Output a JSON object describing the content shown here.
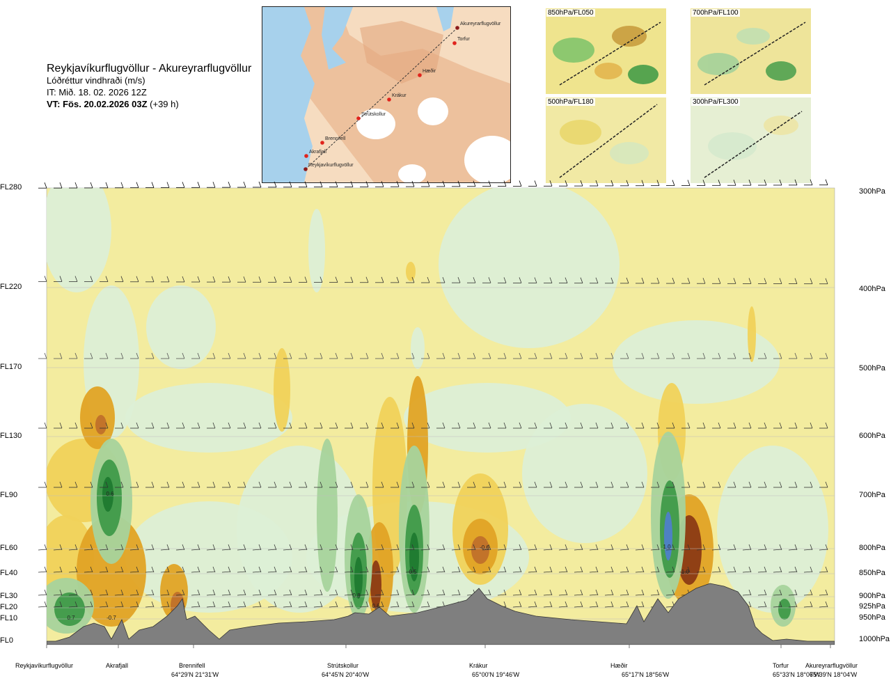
{
  "header": {
    "route": "Reykjavíkurflugvöllur - Akureyrarflugvöllur",
    "variable": "Lóðréttur vindhraði (m/s)",
    "issue_time": "IT: Mið. 18. 02. 2026 12Z",
    "valid_prefix": "VT: Fös. 20.02.2026 03Z",
    "valid_suffix": "(+39 h)"
  },
  "map": {
    "waypoints": [
      "Akureyrarflugvöllur",
      "Torfur",
      "Hæðir",
      "Krákur",
      "Strútskollur",
      "Brennifell",
      "Akrafjall",
      "Reykjavíkurflugvöllur"
    ]
  },
  "mini_maps": [
    {
      "label": "850hPa/FL050"
    },
    {
      "label": "700hPa/FL100"
    },
    {
      "label": "500hPa/FL180"
    },
    {
      "label": "300hPa/FL300"
    }
  ],
  "chart_data": {
    "type": "heatmap",
    "title": "Lóðréttur vindhraði (m/s)",
    "y_left_levels": [
      "FL280",
      "FL220",
      "FL170",
      "FL130",
      "FL90",
      "FL60",
      "FL40",
      "FL30",
      "FL20",
      "FL10",
      "FL0"
    ],
    "y_right_levels": [
      "300hPa",
      "400hPa",
      "500hPa",
      "600hPa",
      "700hPa",
      "800hPa",
      "850hPa",
      "900hPa",
      "925hPa",
      "950hPa",
      "1000hPa"
    ],
    "locations": [
      {
        "name": "Reykjavíkurflugvöllur",
        "coord": ""
      },
      {
        "name": "Akrafjall",
        "coord": ""
      },
      {
        "name": "Brennifell",
        "coord": "64°29'N 21°31'W"
      },
      {
        "name": "Strútskollur",
        "coord": "64°45'N 20°40'W"
      },
      {
        "name": "Krákur",
        "coord": "65°00'N 19°46'W"
      },
      {
        "name": "Hæðir",
        "coord": "65°17'N 18°56'W"
      },
      {
        "name": "Torfur",
        "coord": "65°33'N 18°07'W"
      },
      {
        "name": "Akureyrarflugvöllur",
        "coord": "65°39'N 18°04'W"
      }
    ],
    "annotations": [
      "0.6",
      "0.7",
      "-0.7",
      "0.5",
      "0.8",
      "-0.6",
      "1.0",
      "-1.0",
      "0.6"
    ],
    "colors": {
      "background": "#f3ec9f",
      "up_light": "#dcefd6",
      "up_mid": "#a6d39c",
      "up_strong": "#3f9a49",
      "up_max": "#1f7a2f",
      "up_extreme": "#4f7fc9",
      "down_light": "#f0d25a",
      "down_mid": "#e0a325",
      "down_strong": "#c0702a",
      "down_max": "#8b3a14",
      "terrain": "#7f7f7f"
    }
  }
}
